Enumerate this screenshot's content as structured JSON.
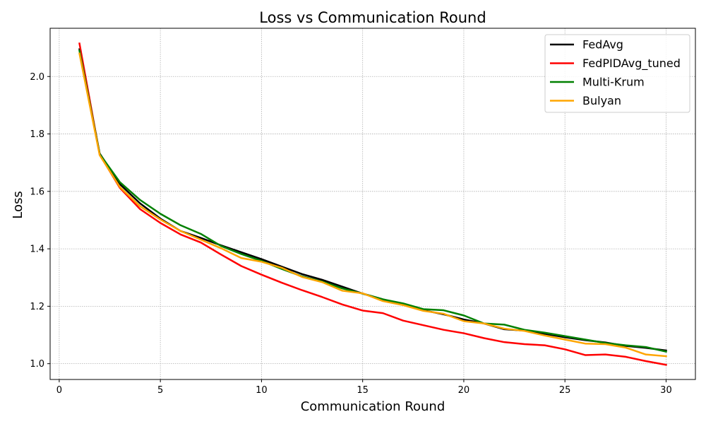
{
  "chart_data": {
    "type": "line",
    "title": "Loss vs Communication Round",
    "xlabel": "Communication Round",
    "ylabel": "Loss",
    "xlim": [
      -0.45,
      31.45
    ],
    "ylim": [
      0.945,
      2.168
    ],
    "xticks": [
      0,
      5,
      10,
      15,
      20,
      25,
      30
    ],
    "yticks": [
      1.0,
      1.2,
      1.4,
      1.6,
      1.8,
      2.0
    ],
    "xtick_labels": [
      "0",
      "5",
      "10",
      "15",
      "20",
      "25",
      "30"
    ],
    "ytick_labels": [
      "1.0",
      "1.2",
      "1.4",
      "1.6",
      "1.8",
      "2.0"
    ],
    "grid": true,
    "legend_position": "top-right",
    "x": [
      1,
      2,
      3,
      4,
      5,
      6,
      7,
      8,
      9,
      10,
      11,
      12,
      13,
      14,
      15,
      16,
      17,
      18,
      19,
      20,
      21,
      22,
      23,
      24,
      25,
      26,
      27,
      28,
      29,
      30
    ],
    "series": [
      {
        "name": "FedAvg",
        "color": "#000000",
        "values": [
          2.095,
          1.732,
          1.625,
          1.558,
          1.505,
          1.462,
          1.438,
          1.412,
          1.388,
          1.364,
          1.338,
          1.312,
          1.292,
          1.268,
          1.244,
          1.224,
          1.206,
          1.186,
          1.172,
          1.154,
          1.14,
          1.12,
          1.115,
          1.104,
          1.092,
          1.082,
          1.074,
          1.062,
          1.055,
          1.046
        ]
      },
      {
        "name": "FedPIDAvg_tuned",
        "color": "#ff0000",
        "values": [
          2.115,
          1.728,
          1.612,
          1.538,
          1.49,
          1.45,
          1.422,
          1.38,
          1.34,
          1.31,
          1.282,
          1.256,
          1.232,
          1.206,
          1.185,
          1.176,
          1.15,
          1.134,
          1.118,
          1.106,
          1.089,
          1.075,
          1.068,
          1.064,
          1.05,
          1.03,
          1.032,
          1.024,
          1.009,
          0.996
        ]
      },
      {
        "name": "Multi-Krum",
        "color": "#008000",
        "values": [
          2.09,
          1.73,
          1.632,
          1.57,
          1.522,
          1.482,
          1.452,
          1.41,
          1.382,
          1.358,
          1.33,
          1.304,
          1.286,
          1.262,
          1.244,
          1.224,
          1.21,
          1.19,
          1.186,
          1.168,
          1.14,
          1.136,
          1.118,
          1.108,
          1.096,
          1.084,
          1.072,
          1.064,
          1.058,
          1.042
        ]
      },
      {
        "name": "Bulyan",
        "color": "#ffa500",
        "values": [
          2.08,
          1.726,
          1.615,
          1.548,
          1.502,
          1.462,
          1.432,
          1.402,
          1.368,
          1.355,
          1.334,
          1.302,
          1.284,
          1.254,
          1.245,
          1.218,
          1.204,
          1.184,
          1.174,
          1.148,
          1.14,
          1.122,
          1.114,
          1.098,
          1.084,
          1.07,
          1.068,
          1.056,
          1.032,
          1.026
        ]
      }
    ]
  }
}
